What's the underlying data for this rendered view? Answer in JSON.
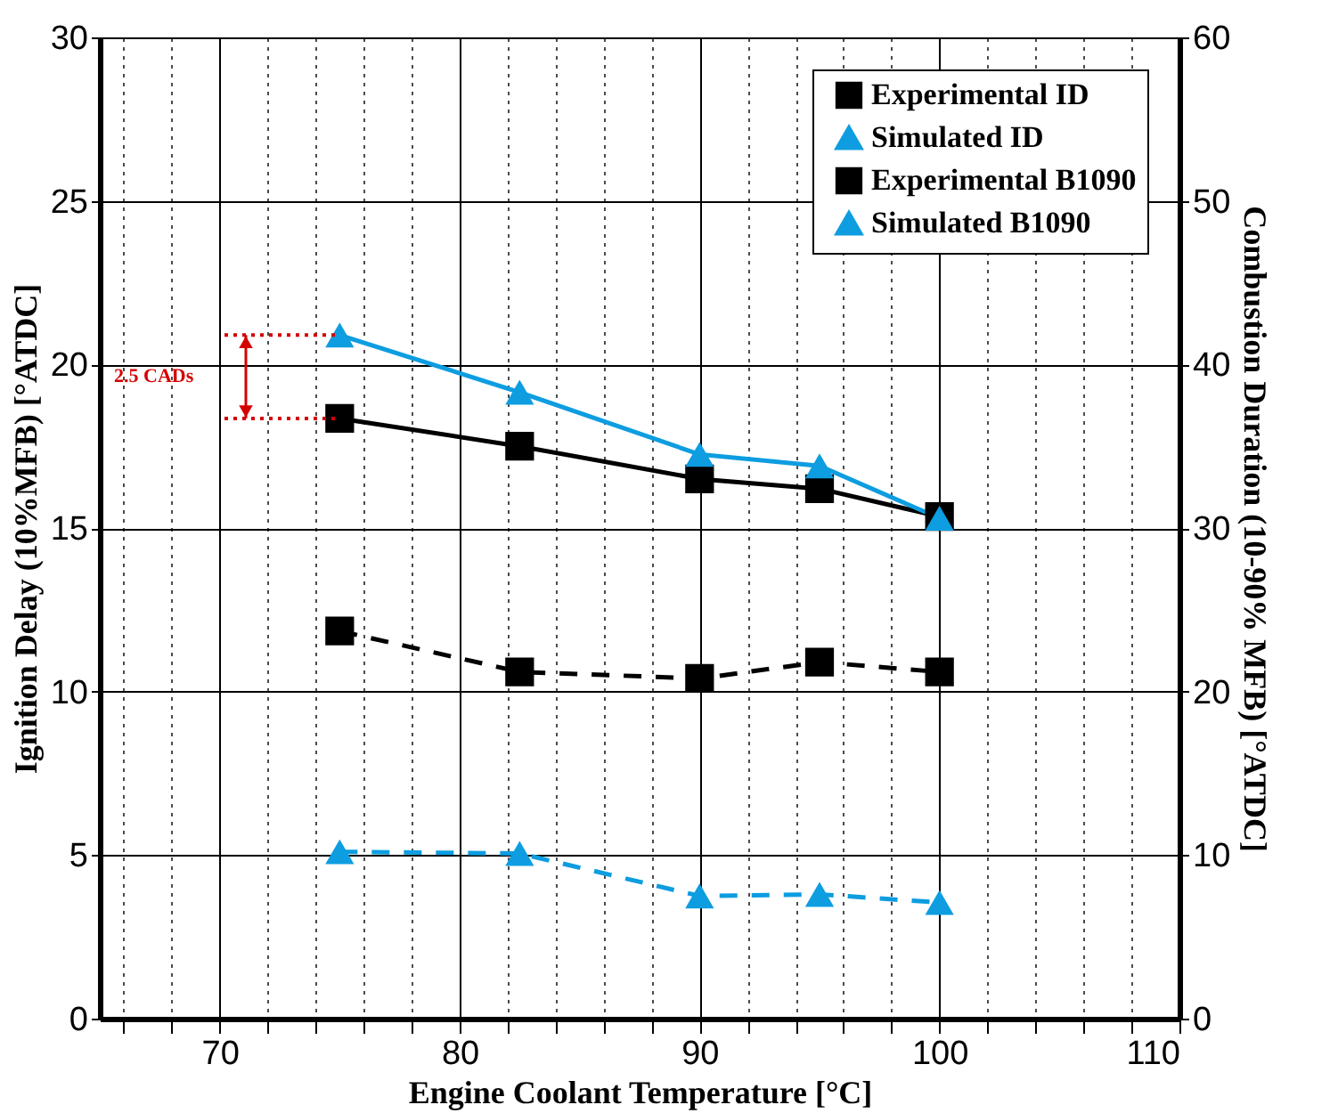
{
  "chart_data": {
    "type": "line",
    "xlabel": "Engine Coolant Temperature [°C]",
    "ylabel": "Ignition Delay (10%MFB) [°ATDC]",
    "y2label": "Combustion Duration (10-90% MFB) [°ATDC]",
    "x": [
      75,
      82.5,
      90,
      95,
      100
    ],
    "series": [
      {
        "name": "Experimental ID",
        "color": "#000000",
        "marker": "square",
        "line_style": "solid",
        "values": [
          18.35,
          17.5,
          16.5,
          16.2,
          15.35
        ]
      },
      {
        "name": "Simulated ID",
        "color": "#0d9de0",
        "marker": "triangle",
        "line_style": "solid",
        "values": [
          20.9,
          19.15,
          17.25,
          16.9,
          15.3
        ]
      },
      {
        "name": "Experimental B1090",
        "color": "#000000",
        "marker": "square",
        "line_style": "dashed",
        "axis": "y2",
        "values": [
          23.7,
          21.2,
          20.8,
          21.8,
          21.2
        ]
      },
      {
        "name": "Simulated B1090",
        "color": "#0d9de0",
        "marker": "triangle",
        "line_style": "dashed",
        "axis": "y2",
        "values": [
          10.2,
          10.1,
          7.5,
          7.6,
          7.1
        ]
      }
    ],
    "xlim": [
      65,
      110
    ],
    "xticks": [
      {
        "value": 66,
        "label": null
      },
      {
        "value": 68,
        "label": null
      },
      70,
      {
        "value": 72,
        "label": null
      },
      {
        "value": 74,
        "label": null
      },
      {
        "value": 76,
        "label": null
      },
      {
        "value": 78,
        "label": null
      },
      80,
      {
        "value": 82,
        "label": null
      },
      {
        "value": 84,
        "label": null
      },
      {
        "value": 86,
        "label": null
      },
      {
        "value": 88,
        "label": null
      },
      90,
      {
        "value": 92,
        "label": null
      },
      {
        "value": 94,
        "label": null
      },
      {
        "value": 96,
        "label": null
      },
      {
        "value": 98,
        "label": null
      },
      100,
      {
        "value": 102,
        "label": null
      },
      {
        "value": 104,
        "label": null
      },
      {
        "value": 106,
        "label": null
      },
      {
        "value": 108,
        "label": null
      },
      110
    ],
    "ylim": [
      0,
      30
    ],
    "yticks": [
      0,
      5,
      10,
      15,
      20,
      25,
      30
    ],
    "y2lim": [
      0,
      60
    ],
    "y2ticks": [
      0,
      10,
      20,
      30,
      40,
      50,
      60
    ],
    "grid": true,
    "legend": "top right",
    "annotations": [
      "2.5 CADs"
    ]
  }
}
